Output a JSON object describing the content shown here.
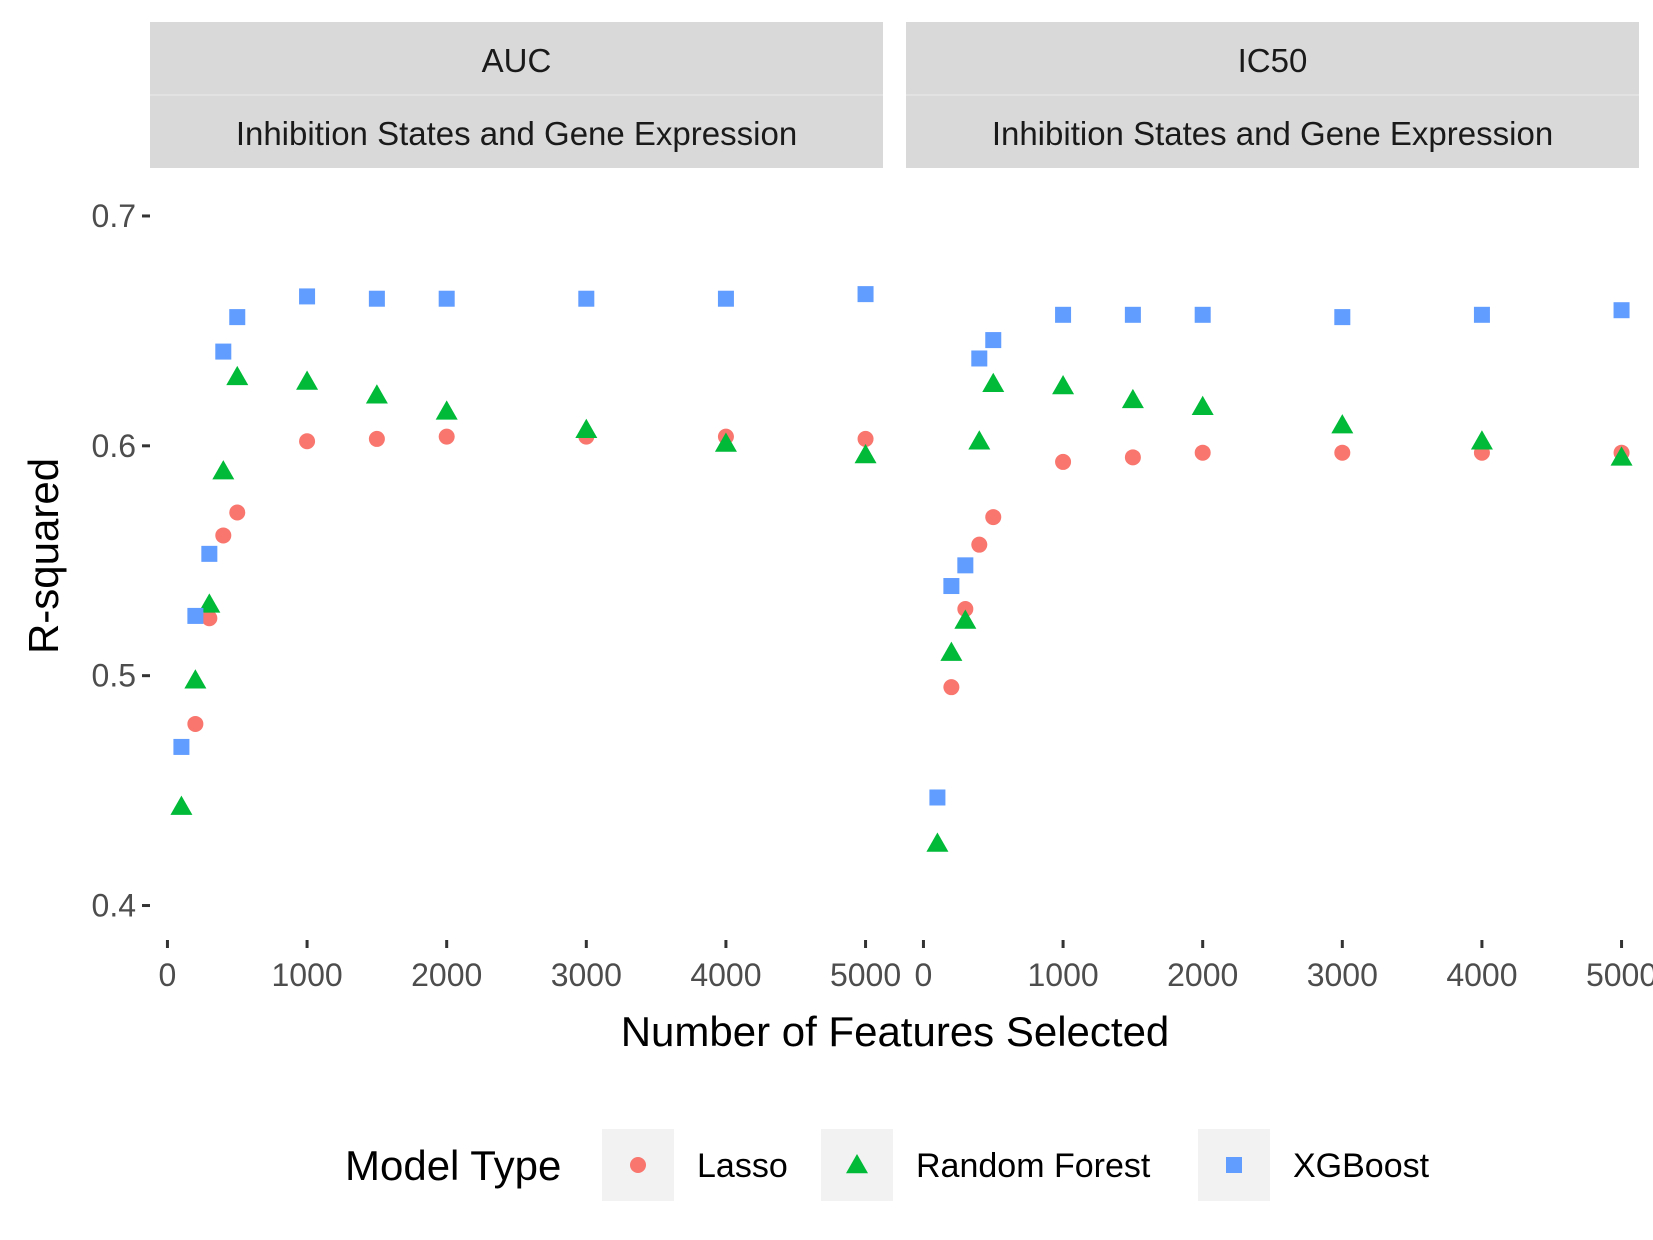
{
  "chart_data": {
    "type": "scatter",
    "xlabel": "Number of Features Selected",
    "ylabel": "R-squared",
    "ylim": [
      0.385,
      0.72
    ],
    "xlim": [
      -125,
      5125
    ],
    "yticks": [
      "0.4",
      "0.5",
      "0.6",
      "0.7"
    ],
    "xticks": [
      "0",
      "1000",
      "2000",
      "3000",
      "4000",
      "5000"
    ],
    "grid": false,
    "legend": {
      "title": "Model Type",
      "position": "bottom",
      "items": [
        "Lasso",
        "Random Forest",
        "XGBoost"
      ]
    },
    "colors": {
      "Lasso": "#F8766D",
      "Random Forest": "#00BA38",
      "XGBoost": "#619CFF"
    },
    "facets": [
      {
        "strip_top": "AUC",
        "strip_bottom": "Inhibition States and Gene Expression",
        "x": [
          100,
          200,
          300,
          400,
          500,
          1000,
          1500,
          2000,
          3000,
          4000,
          5000
        ],
        "series": [
          {
            "name": "Lasso",
            "marker": "circle",
            "values": [
              null,
              0.479,
              0.525,
              0.561,
              0.571,
              0.602,
              0.603,
              0.604,
              0.604,
              0.604,
              0.603
            ]
          },
          {
            "name": "Random Forest",
            "marker": "triangle",
            "values": [
              0.443,
              0.498,
              0.531,
              0.589,
              0.63,
              0.628,
              0.622,
              0.615,
              0.607,
              0.601,
              0.596
            ]
          },
          {
            "name": "XGBoost",
            "marker": "square",
            "values": [
              0.469,
              0.526,
              0.553,
              0.641,
              0.656,
              0.665,
              0.664,
              0.664,
              0.664,
              0.664,
              0.666
            ]
          }
        ]
      },
      {
        "strip_top": "IC50",
        "strip_bottom": "Inhibition States and Gene Expression",
        "x": [
          100,
          200,
          300,
          400,
          500,
          1000,
          1500,
          2000,
          3000,
          4000,
          5000
        ],
        "series": [
          {
            "name": "Lasso",
            "marker": "circle",
            "values": [
              null,
              0.495,
              0.529,
              0.557,
              0.569,
              0.593,
              0.595,
              0.597,
              0.597,
              0.597,
              0.597
            ]
          },
          {
            "name": "Random Forest",
            "marker": "triangle",
            "values": [
              0.427,
              0.51,
              0.524,
              0.602,
              0.627,
              0.626,
              0.62,
              0.617,
              0.609,
              0.602,
              0.595
            ]
          },
          {
            "name": "XGBoost",
            "marker": "square",
            "values": [
              0.447,
              0.539,
              0.548,
              0.638,
              0.646,
              0.657,
              0.657,
              0.657,
              0.656,
              0.657,
              0.659
            ]
          }
        ]
      }
    ]
  }
}
